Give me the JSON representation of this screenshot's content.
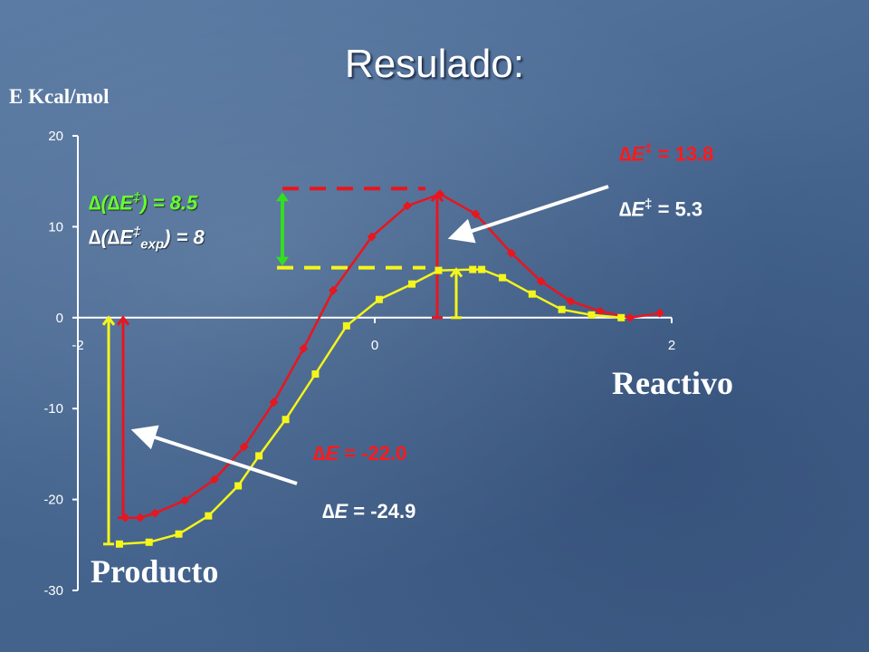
{
  "slide": {
    "title": "Resulado:",
    "ylabel": "E Kcal/mol",
    "reactivo_label": "Reactivo",
    "producto_label": "Producto"
  },
  "annotations": {
    "barrier_red": {
      "delta": "∆",
      "e": "E",
      "ddag": "‡",
      "rest": " = 13.8"
    },
    "barrier_white": {
      "delta": "∆",
      "e": "E",
      "ddag": "‡",
      "rest": " = 5.3"
    },
    "ddE_green": {
      "prefix": "∆(∆",
      "e": "E",
      "ddag": "‡",
      "rest": ") = 8.5"
    },
    "ddE_exp": {
      "prefix": "∆(∆",
      "e": "E",
      "ddag": "‡",
      "sub": "exp",
      "rest": ") = 8"
    },
    "dE_red": {
      "delta": "∆",
      "e": "E",
      "rest": " = -22.0"
    },
    "dE_white": {
      "delta": "∆",
      "e": "E",
      "rest": " = -24.9"
    }
  },
  "colors": {
    "red_series": "#e8161e",
    "yellow_series": "#f5f51a",
    "green_arrow": "#33dd22",
    "axis": "#ffffff"
  },
  "chart_data": {
    "type": "line",
    "xlim": [
      -2,
      2
    ],
    "ylim": [
      -30,
      20
    ],
    "x_ticks": [
      -2,
      0,
      2
    ],
    "y_ticks": [
      20,
      10,
      0,
      -10,
      -20,
      -30
    ],
    "series": [
      {
        "color": "#e8161e",
        "marker": "diamond",
        "points": [
          [
            -1.68,
            -22.0
          ],
          [
            -1.58,
            -22.0
          ],
          [
            -1.48,
            -21.5
          ],
          [
            -1.28,
            -20.1
          ],
          [
            -1.08,
            -17.8
          ],
          [
            -0.88,
            -14.2
          ],
          [
            -0.68,
            -9.3
          ],
          [
            -0.48,
            -3.4
          ],
          [
            -0.28,
            3.0
          ],
          [
            -0.02,
            8.9
          ],
          [
            0.22,
            12.3
          ],
          [
            0.44,
            13.6
          ],
          [
            0.68,
            11.4
          ],
          [
            0.92,
            7.1
          ],
          [
            1.12,
            4.0
          ],
          [
            1.32,
            1.8
          ],
          [
            1.52,
            0.7
          ],
          [
            1.72,
            0.0
          ],
          [
            1.92,
            0.5
          ]
        ]
      },
      {
        "color": "#f5f51a",
        "marker": "square",
        "points": [
          [
            -1.72,
            -24.9
          ],
          [
            -1.52,
            -24.7
          ],
          [
            -1.32,
            -23.8
          ],
          [
            -1.12,
            -21.8
          ],
          [
            -0.92,
            -18.5
          ],
          [
            -0.78,
            -15.2
          ],
          [
            -0.6,
            -11.2
          ],
          [
            -0.4,
            -6.2
          ],
          [
            -0.19,
            -0.9
          ],
          [
            0.03,
            2.0
          ],
          [
            0.25,
            3.7
          ],
          [
            0.43,
            5.2
          ],
          [
            0.66,
            5.3
          ],
          [
            0.72,
            5.3
          ],
          [
            0.86,
            4.4
          ],
          [
            1.06,
            2.6
          ],
          [
            1.26,
            0.9
          ],
          [
            1.46,
            0.3
          ],
          [
            1.66,
            0.0
          ]
        ]
      }
    ]
  }
}
